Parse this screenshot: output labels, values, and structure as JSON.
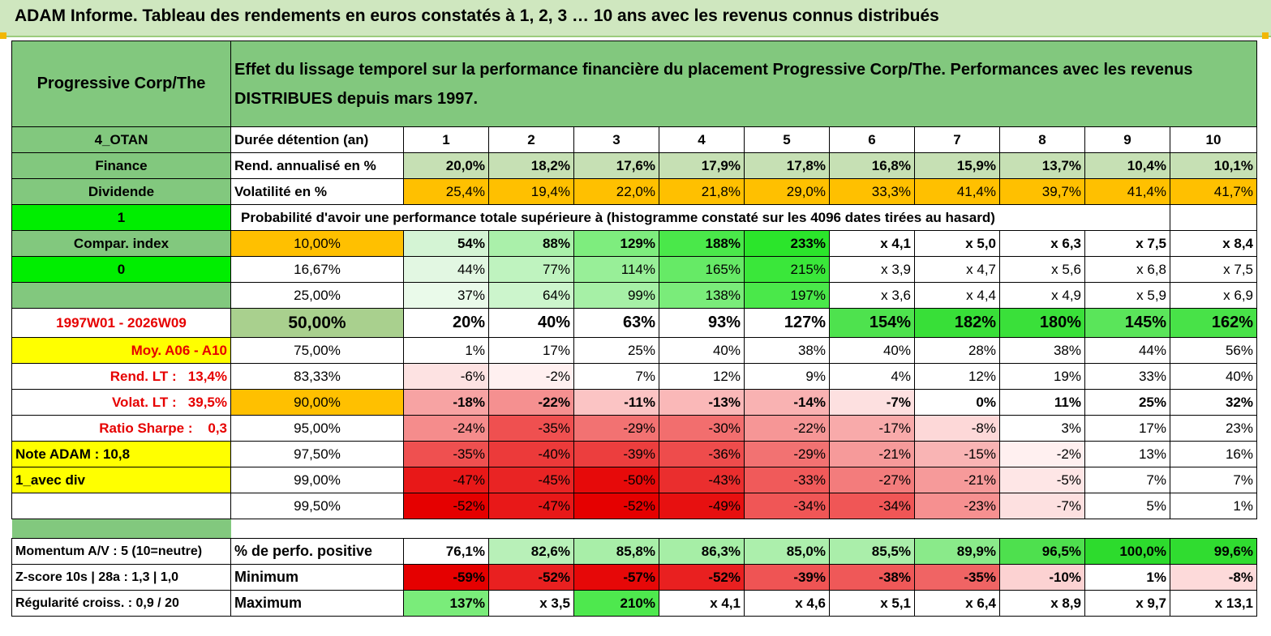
{
  "title": "ADAM Informe. Tableau des rendements en euros constatés à 1, 2, 3 … 10 ans avec les revenus connus distribués",
  "colors": {
    "header_green": "#82c87e",
    "light_green": "#c6e0b4",
    "orange": "#ffc000",
    "yellow": "#ffff00",
    "bright_green": "#00ee00",
    "red_text": "#e60000"
  },
  "header": {
    "fund_name": "Progressive Corp/The",
    "description": "Effet du lissage temporel sur la performance financière du placement Progressive Corp/The. Performances avec les revenus DISTRIBUES depuis mars 1997."
  },
  "rows": [
    {
      "label": "4_OTAN",
      "label_bg": "#82c87e",
      "label_style": "center",
      "desc": "Durée détention (an)",
      "desc_bg": "#ffffff",
      "cells": [
        {
          "v": "1",
          "bg": "#ffffff"
        },
        {
          "v": "2",
          "bg": "#ffffff"
        },
        {
          "v": "3",
          "bg": "#ffffff"
        },
        {
          "v": "4",
          "bg": "#ffffff"
        },
        {
          "v": "5",
          "bg": "#ffffff"
        },
        {
          "v": "6",
          "bg": "#ffffff"
        },
        {
          "v": "7",
          "bg": "#ffffff"
        },
        {
          "v": "8",
          "bg": "#ffffff"
        },
        {
          "v": "9",
          "bg": "#ffffff"
        },
        {
          "v": "10",
          "bg": "#ffffff"
        }
      ],
      "cell_style": "center-bold"
    },
    {
      "label": "Finance",
      "label_bg": "#82c87e",
      "label_style": "center",
      "desc": "Rend. annualisé en %",
      "desc_bg": "#ffffff",
      "cells": [
        {
          "v": "20,0%",
          "bg": "#c6e0b4"
        },
        {
          "v": "18,2%",
          "bg": "#c6e0b4"
        },
        {
          "v": "17,6%",
          "bg": "#c6e0b4"
        },
        {
          "v": "17,9%",
          "bg": "#c6e0b4"
        },
        {
          "v": "17,8%",
          "bg": "#c6e0b4"
        },
        {
          "v": "16,8%",
          "bg": "#c6e0b4"
        },
        {
          "v": "15,9%",
          "bg": "#c6e0b4"
        },
        {
          "v": "13,7%",
          "bg": "#c6e0b4"
        },
        {
          "v": "10,4%",
          "bg": "#c6e0b4"
        },
        {
          "v": "10,1%",
          "bg": "#c6e0b4"
        }
      ],
      "cell_style": "bold"
    },
    {
      "label": "Dividende",
      "label_bg": "#82c87e",
      "label_style": "center",
      "desc": "Volatilité en %",
      "desc_bg": "#ffffff",
      "cells": [
        {
          "v": "25,4%",
          "bg": "#ffc000"
        },
        {
          "v": "19,4%",
          "bg": "#ffc000"
        },
        {
          "v": "22,0%",
          "bg": "#ffc000"
        },
        {
          "v": "21,8%",
          "bg": "#ffc000"
        },
        {
          "v": "29,0%",
          "bg": "#ffc000"
        },
        {
          "v": "33,3%",
          "bg": "#ffc000"
        },
        {
          "v": "41,4%",
          "bg": "#ffc000"
        },
        {
          "v": "39,7%",
          "bg": "#ffc000"
        },
        {
          "v": "41,4%",
          "bg": "#ffc000"
        },
        {
          "v": "41,7%",
          "bg": "#ffc000"
        }
      ],
      "cell_style": "normal"
    },
    {
      "label": "1",
      "label_bg": "#00ee00",
      "label_style": "center",
      "span_text": "Probabilité d'avoir une performance totale supérieure à (histogramme constaté sur les 4096 dates tirées au hasard)",
      "cells": [
        {
          "v": "",
          "bg": "#ffffff"
        }
      ],
      "cell_style": "normal"
    },
    {
      "label": "Compar. index",
      "label_bg": "#82c87e",
      "label_style": "center",
      "desc": "10,00%",
      "desc_bg": "#ffc000",
      "desc_center": true,
      "cells": [
        {
          "v": "54%",
          "bg": "#d4f4d4"
        },
        {
          "v": "88%",
          "bg": "#aaf0aa"
        },
        {
          "v": "129%",
          "bg": "#7eed7e"
        },
        {
          "v": "188%",
          "bg": "#4ae84a"
        },
        {
          "v": "233%",
          "bg": "#2be52b"
        },
        {
          "v": "x 4,1",
          "bg": "#ffffff"
        },
        {
          "v": "x 5,0",
          "bg": "#ffffff"
        },
        {
          "v": "x 6,3",
          "bg": "#ffffff"
        },
        {
          "v": "x 7,5",
          "bg": "#ffffff"
        },
        {
          "v": "x 8,4",
          "bg": "#ffffff"
        }
      ],
      "cell_style": "bold"
    },
    {
      "label": "0",
      "label_bg": "#00ee00",
      "label_style": "center",
      "desc": "16,67%",
      "desc_bg": "#ffffff",
      "desc_center": true,
      "cells": [
        {
          "v": "44%",
          "bg": "#e2f7e2"
        },
        {
          "v": "77%",
          "bg": "#bff3bf"
        },
        {
          "v": "114%",
          "bg": "#98ef98"
        },
        {
          "v": "165%",
          "bg": "#66ea66"
        },
        {
          "v": "215%",
          "bg": "#3ae73a"
        },
        {
          "v": "x 3,9",
          "bg": "#ffffff"
        },
        {
          "v": "x 4,7",
          "bg": "#ffffff"
        },
        {
          "v": "x 5,6",
          "bg": "#ffffff"
        },
        {
          "v": "x 6,8",
          "bg": "#ffffff"
        },
        {
          "v": "x 7,5",
          "bg": "#ffffff"
        }
      ],
      "cell_style": "normal"
    },
    {
      "label": "",
      "label_bg": "#82c87e",
      "label_style": "center",
      "desc": "25,00%",
      "desc_bg": "#ffffff",
      "desc_center": true,
      "cells": [
        {
          "v": "37%",
          "bg": "#eafaea"
        },
        {
          "v": "64%",
          "bg": "#ccf5cc"
        },
        {
          "v": "99%",
          "bg": "#a6f0a6"
        },
        {
          "v": "138%",
          "bg": "#7aec7a"
        },
        {
          "v": "197%",
          "bg": "#4ae84a"
        },
        {
          "v": "x 3,6",
          "bg": "#ffffff"
        },
        {
          "v": "x 4,4",
          "bg": "#ffffff"
        },
        {
          "v": "x 4,9",
          "bg": "#ffffff"
        },
        {
          "v": "x 5,9",
          "bg": "#ffffff"
        },
        {
          "v": "x 6,9",
          "bg": "#ffffff"
        }
      ],
      "cell_style": "normal"
    },
    {
      "label": "1997W01 - 2026W09",
      "label_bg": "#ffffff",
      "label_style": "red-center",
      "desc": "50,00%",
      "desc_bg": "#a9d08e",
      "desc_center": true,
      "desc_big": true,
      "cells": [
        {
          "v": "20%",
          "bg": "#ffffff"
        },
        {
          "v": "40%",
          "bg": "#ffffff"
        },
        {
          "v": "63%",
          "bg": "#ffffff"
        },
        {
          "v": "93%",
          "bg": "#ffffff"
        },
        {
          "v": "127%",
          "bg": "#ffffff"
        },
        {
          "v": "154%",
          "bg": "#4ee24e"
        },
        {
          "v": "182%",
          "bg": "#38df38"
        },
        {
          "v": "180%",
          "bg": "#3ae03a"
        },
        {
          "v": "145%",
          "bg": "#5ae55a"
        },
        {
          "v": "162%",
          "bg": "#48e248"
        }
      ],
      "cell_style": "big"
    },
    {
      "label": "Moy. A06 - A10",
      "label_bg": "#ffff00",
      "label_style": "red-right",
      "desc": "75,00%",
      "desc_bg": "#ffffff",
      "desc_center": true,
      "cells": [
        {
          "v": "1%",
          "bg": "#ffffff"
        },
        {
          "v": "17%",
          "bg": "#ffffff"
        },
        {
          "v": "25%",
          "bg": "#ffffff"
        },
        {
          "v": "40%",
          "bg": "#ffffff"
        },
        {
          "v": "38%",
          "bg": "#ffffff"
        },
        {
          "v": "40%",
          "bg": "#ffffff"
        },
        {
          "v": "28%",
          "bg": "#ffffff"
        },
        {
          "v": "38%",
          "bg": "#ffffff"
        },
        {
          "v": "44%",
          "bg": "#ffffff"
        },
        {
          "v": "56%",
          "bg": "#ffffff"
        }
      ],
      "cell_style": "normal"
    },
    {
      "label": "Rend. LT :   13,4%",
      "label_bg": "#ffffff",
      "label_style": "red-right",
      "desc": "83,33%",
      "desc_bg": "#ffffff",
      "desc_center": true,
      "cells": [
        {
          "v": "-6%",
          "bg": "#fde2e2"
        },
        {
          "v": "-2%",
          "bg": "#fff0f0"
        },
        {
          "v": "7%",
          "bg": "#ffffff"
        },
        {
          "v": "12%",
          "bg": "#ffffff"
        },
        {
          "v": "9%",
          "bg": "#ffffff"
        },
        {
          "v": "4%",
          "bg": "#ffffff"
        },
        {
          "v": "12%",
          "bg": "#ffffff"
        },
        {
          "v": "19%",
          "bg": "#ffffff"
        },
        {
          "v": "33%",
          "bg": "#ffffff"
        },
        {
          "v": "40%",
          "bg": "#ffffff"
        }
      ],
      "cell_style": "normal"
    },
    {
      "label": "Volat. LT :   39,5%",
      "label_bg": "#ffffff",
      "label_style": "red-right",
      "desc": "90,00%",
      "desc_bg": "#ffc000",
      "desc_center": true,
      "cells": [
        {
          "v": "-18%",
          "bg": "#f7a3a3"
        },
        {
          "v": "-22%",
          "bg": "#f59090"
        },
        {
          "v": "-11%",
          "bg": "#fbc4c4"
        },
        {
          "v": "-13%",
          "bg": "#fab8b8"
        },
        {
          "v": "-14%",
          "bg": "#f9b2b2"
        },
        {
          "v": "-7%",
          "bg": "#fde0e0"
        },
        {
          "v": "0%",
          "bg": "#ffffff"
        },
        {
          "v": "11%",
          "bg": "#ffffff"
        },
        {
          "v": "25%",
          "bg": "#ffffff"
        },
        {
          "v": "32%",
          "bg": "#ffffff"
        }
      ],
      "cell_style": "bold"
    },
    {
      "label": "Ratio Sharpe :    0,3",
      "label_bg": "#ffffff",
      "label_style": "red-right",
      "desc": "95,00%",
      "desc_bg": "#ffffff",
      "desc_center": true,
      "cells": [
        {
          "v": "-24%",
          "bg": "#f58c8c"
        },
        {
          "v": "-35%",
          "bg": "#ef5050"
        },
        {
          "v": "-29%",
          "bg": "#f27272"
        },
        {
          "v": "-30%",
          "bg": "#f26e6e"
        },
        {
          "v": "-22%",
          "bg": "#f69696"
        },
        {
          "v": "-17%",
          "bg": "#f8aaaa"
        },
        {
          "v": "-8%",
          "bg": "#fdd8d8"
        },
        {
          "v": "3%",
          "bg": "#ffffff"
        },
        {
          "v": "17%",
          "bg": "#ffffff"
        },
        {
          "v": "23%",
          "bg": "#ffffff"
        }
      ],
      "cell_style": "normal"
    },
    {
      "label": "Note ADAM : 10,8",
      "label_bg": "#ffff00",
      "label_style": "left",
      "desc": "97,50%",
      "desc_bg": "#ffffff",
      "desc_center": true,
      "cells": [
        {
          "v": "-35%",
          "bg": "#ef5050"
        },
        {
          "v": "-40%",
          "bg": "#ec3a3a"
        },
        {
          "v": "-39%",
          "bg": "#ec3e3e"
        },
        {
          "v": "-36%",
          "bg": "#ee4c4c"
        },
        {
          "v": "-29%",
          "bg": "#f27272"
        },
        {
          "v": "-21%",
          "bg": "#f69a9a"
        },
        {
          "v": "-15%",
          "bg": "#f9b4b4"
        },
        {
          "v": "-2%",
          "bg": "#fff0f0"
        },
        {
          "v": "13%",
          "bg": "#ffffff"
        },
        {
          "v": "16%",
          "bg": "#ffffff"
        }
      ],
      "cell_style": "normal"
    },
    {
      "label": "1_avec div",
      "label_bg": "#ffff00",
      "label_style": "left",
      "desc": "99,00%",
      "desc_bg": "#ffffff",
      "desc_center": true,
      "cells": [
        {
          "v": "-47%",
          "bg": "#e81818"
        },
        {
          "v": "-45%",
          "bg": "#e92424"
        },
        {
          "v": "-50%",
          "bg": "#e60a0a"
        },
        {
          "v": "-43%",
          "bg": "#ea2e2e"
        },
        {
          "v": "-33%",
          "bg": "#f05a5a"
        },
        {
          "v": "-27%",
          "bg": "#f37c7c"
        },
        {
          "v": "-21%",
          "bg": "#f69a9a"
        },
        {
          "v": "-5%",
          "bg": "#fee6e6"
        },
        {
          "v": "7%",
          "bg": "#ffffff"
        },
        {
          "v": "7%",
          "bg": "#ffffff"
        }
      ],
      "cell_style": "normal"
    },
    {
      "label": "",
      "label_bg": "#ffffff",
      "label_style": "left",
      "desc": "99,50%",
      "desc_bg": "#ffffff",
      "desc_center": true,
      "cells": [
        {
          "v": "-52%",
          "bg": "#e50000"
        },
        {
          "v": "-47%",
          "bg": "#e81818"
        },
        {
          "v": "-52%",
          "bg": "#e50000"
        },
        {
          "v": "-49%",
          "bg": "#e71010"
        },
        {
          "v": "-34%",
          "bg": "#f05656"
        },
        {
          "v": "-34%",
          "bg": "#f05656"
        },
        {
          "v": "-23%",
          "bg": "#f69090"
        },
        {
          "v": "-7%",
          "bg": "#fde0e0"
        },
        {
          "v": "5%",
          "bg": "#ffffff"
        },
        {
          "v": "1%",
          "bg": "#ffffff"
        }
      ],
      "cell_style": "normal"
    }
  ],
  "bottom_rows": [
    {
      "label": "Momentum A/V : 5 (10=neutre)",
      "desc": "% de perfo. positive",
      "cells": [
        {
          "v": "76,1%",
          "bg": "#ffffff"
        },
        {
          "v": "82,6%",
          "bg": "#b8f0b8"
        },
        {
          "v": "85,8%",
          "bg": "#a8eea8"
        },
        {
          "v": "86,3%",
          "bg": "#a6eea6"
        },
        {
          "v": "85,0%",
          "bg": "#acefac"
        },
        {
          "v": "85,5%",
          "bg": "#aaeeaa"
        },
        {
          "v": "89,9%",
          "bg": "#8aea8a"
        },
        {
          "v": "96,5%",
          "bg": "#4ee04e"
        },
        {
          "v": "100,0%",
          "bg": "#2ddb2d"
        },
        {
          "v": "99,6%",
          "bg": "#30dc30"
        }
      ]
    },
    {
      "label": "Z-score 10s | 28a : 1,3 | 1,0",
      "desc": "Minimum",
      "cells": [
        {
          "v": "-59%",
          "bg": "#e50000"
        },
        {
          "v": "-52%",
          "bg": "#e92020"
        },
        {
          "v": "-57%",
          "bg": "#e60808"
        },
        {
          "v": "-52%",
          "bg": "#e92020"
        },
        {
          "v": "-39%",
          "bg": "#ef5454"
        },
        {
          "v": "-38%",
          "bg": "#ef5858"
        },
        {
          "v": "-35%",
          "bg": "#f06464"
        },
        {
          "v": "-10%",
          "bg": "#fcd2d2"
        },
        {
          "v": "1%",
          "bg": "#ffffff"
        },
        {
          "v": "-8%",
          "bg": "#fddada"
        }
      ]
    },
    {
      "label": "Régularité croiss. : 0,9 / 20",
      "desc": "Maximum",
      "cells": [
        {
          "v": "137%",
          "bg": "#7aec7a"
        },
        {
          "v": "x 3,5",
          "bg": "#ffffff"
        },
        {
          "v": "210%",
          "bg": "#4ee84e"
        },
        {
          "v": "x 4,1",
          "bg": "#ffffff"
        },
        {
          "v": "x 4,6",
          "bg": "#ffffff"
        },
        {
          "v": "x 5,1",
          "bg": "#ffffff"
        },
        {
          "v": "x 6,4",
          "bg": "#ffffff"
        },
        {
          "v": "x 8,9",
          "bg": "#ffffff"
        },
        {
          "v": "x 9,7",
          "bg": "#ffffff"
        },
        {
          "v": "x 13,1",
          "bg": "#ffffff"
        }
      ]
    }
  ]
}
